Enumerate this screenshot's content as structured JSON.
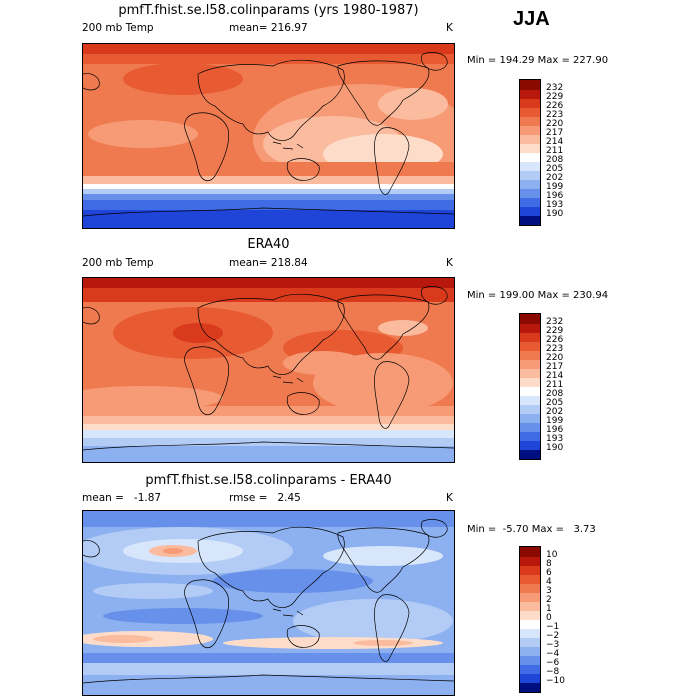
{
  "season": "JJA",
  "units_label": "K",
  "panels": [
    {
      "title": "pmfT.fhist.se.l58.colinparams (yrs 1980-1987)",
      "left_label": "200 mb Temp",
      "center_label": "mean= 216.97",
      "right_label": "K",
      "minmax": "Min = 194.29 Max = 227.90",
      "colorbar_labels": [
        "232",
        "229",
        "226",
        "223",
        "220",
        "217",
        "214",
        "211",
        "208",
        "205",
        "202",
        "199",
        "196",
        "193",
        "190"
      ]
    },
    {
      "title": "ERA40",
      "left_label": "200 mb Temp",
      "center_label": "mean= 218.84",
      "right_label": "K",
      "minmax": "Min = 199.00 Max = 230.94",
      "colorbar_labels": [
        "232",
        "229",
        "226",
        "223",
        "220",
        "217",
        "214",
        "211",
        "208",
        "205",
        "202",
        "199",
        "196",
        "193",
        "190"
      ]
    },
    {
      "title": "pmfT.fhist.se.l58.colinparams - ERA40",
      "left_label": "mean =   -1.87",
      "center_label": "rmse =   2.45",
      "right_label": "K",
      "minmax": "Min =  -5.70 Max =   3.73",
      "colorbar_labels": [
        "10",
        "8",
        "6",
        "4",
        "3",
        "2",
        "1",
        "0",
        "−1",
        "−2",
        "−3",
        "−4",
        "−6",
        "−8",
        "−10"
      ]
    }
  ],
  "colors": {
    "scale": [
      "#8b0a00",
      "#b8180c",
      "#d93a1c",
      "#e85a32",
      "#f07a50",
      "#f69b76",
      "#fabb9e",
      "#fdddca",
      "#ffffff",
      "#d8e6fb",
      "#b3ccf6",
      "#8cb0f0",
      "#6690ea",
      "#3f6ce4",
      "#1e44d8",
      "#0c1ca8",
      "#000f80"
    ]
  }
}
